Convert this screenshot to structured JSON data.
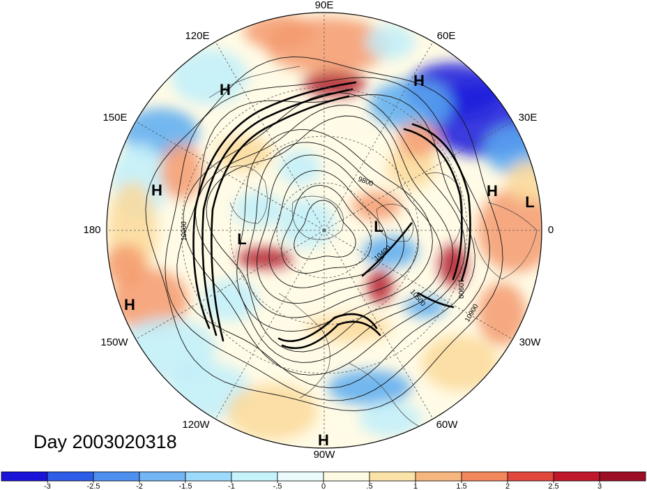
{
  "map": {
    "projection": "north-polar-stereographic",
    "day_label": "Day 2003020318",
    "longitude_labels": [
      "90E",
      "60E",
      "30E",
      "0",
      "30W",
      "60W",
      "90W",
      "120W",
      "150W",
      "180",
      "150E",
      "120E"
    ],
    "pressure_centers": [
      {
        "type": "H",
        "region": "north-africa-east"
      },
      {
        "type": "L",
        "region": "north-africa-west"
      },
      {
        "type": "H",
        "region": "siberia"
      },
      {
        "type": "H",
        "region": "east-asia"
      },
      {
        "type": "H",
        "region": "north-pacific-west"
      },
      {
        "type": "H",
        "region": "north-pacific-east"
      },
      {
        "type": "L",
        "region": "bering"
      },
      {
        "type": "L",
        "region": "greenland"
      },
      {
        "type": "H",
        "region": "south-edge"
      }
    ],
    "contour_labels": [
      "9800",
      "10900",
      "10500",
      "10400",
      "10900",
      "10900"
    ],
    "colors": {
      "strong_negative": "#1a1adc",
      "negative": "#5aaaf0",
      "weak_negative": "#bfeffa",
      "neutral": "#fffbe6",
      "weak_positive": "#fbd99a",
      "positive": "#f59a6e",
      "strong_positive": "#b0182a"
    }
  },
  "colorbar": {
    "ticks": [
      "-3",
      "-2.5",
      "-2",
      "-1.5",
      "-1",
      "-.5",
      "0",
      ".5",
      "1",
      "1.5",
      "2",
      "2.5",
      "3"
    ],
    "colors": [
      "#1a13d8",
      "#2e5ee8",
      "#4f8ff0",
      "#74b5f5",
      "#9dd9fa",
      "#c6f2fc",
      "#ecfcfe",
      "#fefbe2",
      "#fbe3a8",
      "#f6b680",
      "#f2865c",
      "#e2473e",
      "#c0182b",
      "#9c0f24"
    ]
  }
}
